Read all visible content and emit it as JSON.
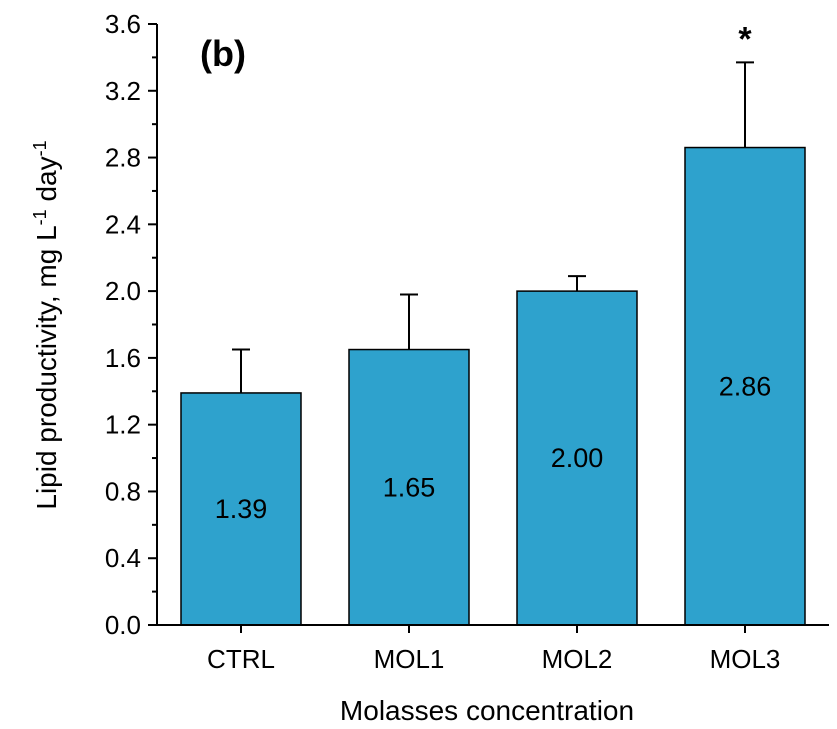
{
  "chart_data": {
    "type": "bar",
    "panel_label": "(b)",
    "categories": [
      "CTRL",
      "MOL1",
      "MOL2",
      "MOL3"
    ],
    "values": [
      1.39,
      1.65,
      2.0,
      2.86
    ],
    "value_labels": [
      "1.39",
      "1.65",
      "2.00",
      "2.86"
    ],
    "errors": [
      0.26,
      0.33,
      0.09,
      0.51
    ],
    "significance": [
      "",
      "",
      "",
      "*"
    ],
    "xlabel": "Molasses concentration",
    "ylabel": {
      "parts": [
        "Lipid productivity, mg L",
        "-1",
        " day",
        "-1"
      ]
    },
    "ylim": [
      0.0,
      3.6
    ],
    "yticks": [
      "0.0",
      "0.4",
      "0.8",
      "1.2",
      "1.6",
      "2.0",
      "2.4",
      "2.8",
      "3.2",
      "3.6"
    ],
    "bar_color": "#2ea2cd",
    "grid": false,
    "legend": "none"
  }
}
